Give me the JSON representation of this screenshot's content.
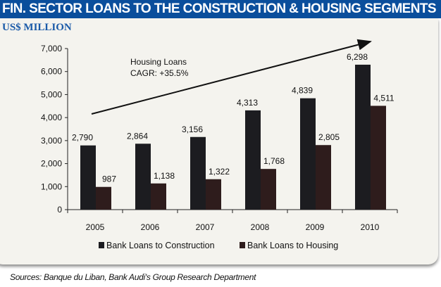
{
  "header": {
    "title": "FIN. SECTOR LOANS TO THE CONSTRUCTION & HOUSING SEGMENTS",
    "subtitle": "US$ MILLION"
  },
  "source": "Sources: Banque du Liban, Bank Audi's Group Research Department",
  "chart_data": {
    "type": "bar",
    "title": "FIN. SECTOR LOANS TO THE CONSTRUCTION & HOUSING SEGMENTS",
    "ylabel": "US$ MILLION",
    "categories": [
      "2005",
      "2006",
      "2007",
      "2008",
      "2009",
      "2010"
    ],
    "ylim": [
      0,
      7000
    ],
    "yticks": [
      "0",
      "1,000",
      "2,000",
      "3,000",
      "4,000",
      "5,000",
      "6,000",
      "7,000"
    ],
    "grid": false,
    "legend": "bottom",
    "series": [
      {
        "name": "Bank Loans to Construction",
        "values": [
          2790,
          2864,
          3156,
          4313,
          4839,
          6298
        ],
        "labels": [
          "2,790",
          "2,864",
          "3,156",
          "4,313",
          "4,839",
          "6,298"
        ],
        "color": "#1c1c20"
      },
      {
        "name": "Bank Loans to Housing",
        "values": [
          987,
          1138,
          1322,
          1768,
          2805,
          4511
        ],
        "labels": [
          "987",
          "1,138",
          "1,322",
          "1,768",
          "2,805",
          "4,511"
        ],
        "color": "#2e1c1c"
      }
    ],
    "annotation": {
      "line1": "Housing Loans",
      "line2": "CAGR: +35.5%"
    }
  }
}
